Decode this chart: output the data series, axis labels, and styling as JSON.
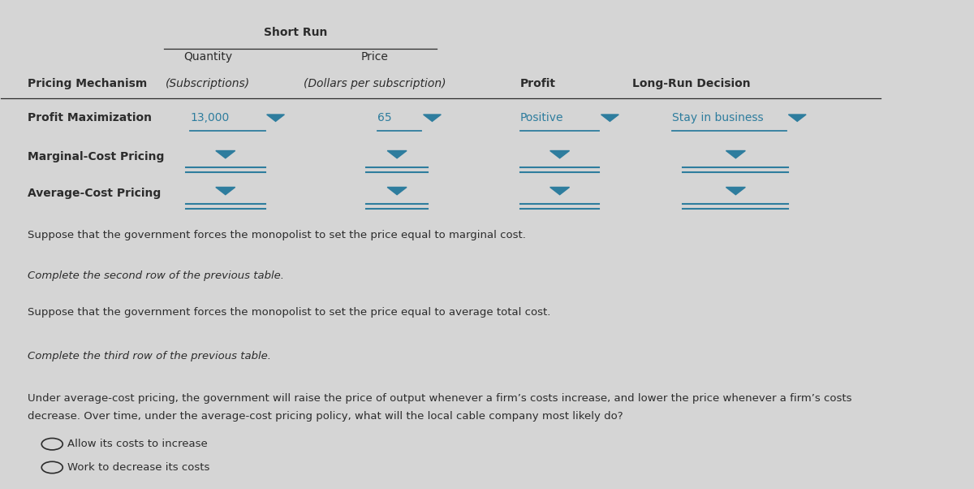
{
  "bg_color": "#d5d5d5",
  "title_short_run": "Short Run",
  "teal_color": "#2e7d9e",
  "dark_text": "#2c2c2c",
  "paragraph1": "Suppose that the government forces the monopolist to set the price equal to marginal cost.",
  "paragraph2": "Complete the second row of the previous table.",
  "paragraph3": "Suppose that the government forces the monopolist to set the price equal to average total cost.",
  "paragraph4": "Complete the third row of the previous table.",
  "paragraph5": "Under average-cost pricing, the government will raise the price of output whenever a firm’s costs increase, and lower the price whenever a firm’s costs\ndecrease. Over time, under the average-cost pricing policy, what will the local cable company most likely do?",
  "radio1": "Allow its costs to increase",
  "radio2": "Work to decrease its costs",
  "figsize": [
    12.0,
    6.02
  ],
  "dpi": 100
}
